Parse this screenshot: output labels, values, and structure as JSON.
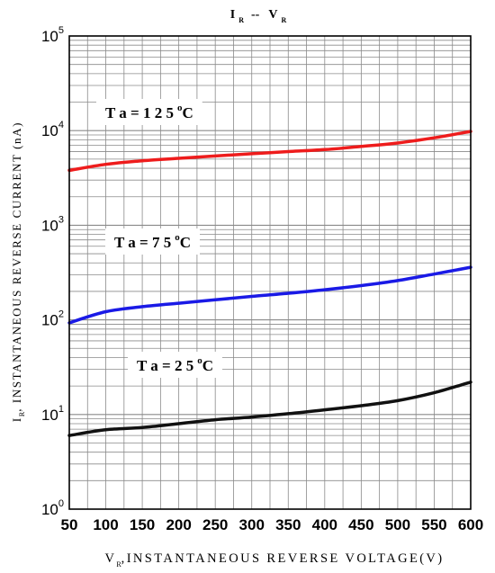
{
  "chart_data": {
    "type": "line",
    "title": {
      "main": "I",
      "sub_1": "R",
      "sep": "--",
      "main_2": "V",
      "sub_2": "R"
    },
    "xlabel": {
      "prefix": "V",
      "sub": "R",
      "text": ",INSTANTANEOUS REVERSE VOLTAGE(V)"
    },
    "ylabel": {
      "prefix": "I",
      "sub": "R",
      "text": ", INSTANTANEOUS REVERSE CURRENT (nA)"
    },
    "xlim": [
      50,
      600
    ],
    "ylim": [
      1,
      100000
    ],
    "yscale": "log",
    "grid": true,
    "x_ticks": [
      "50",
      "100",
      "150",
      "200",
      "250",
      "300",
      "350",
      "400",
      "450",
      "500",
      "550",
      "600"
    ],
    "y_ticks": [
      {
        "base": "10",
        "exp": "0"
      },
      {
        "base": "10",
        "exp": "1"
      },
      {
        "base": "10",
        "exp": "2"
      },
      {
        "base": "10",
        "exp": "3"
      },
      {
        "base": "10",
        "exp": "4"
      },
      {
        "base": "10",
        "exp": "5"
      }
    ],
    "x": [
      50,
      100,
      150,
      200,
      250,
      300,
      350,
      400,
      450,
      500,
      550,
      600
    ],
    "series": [
      {
        "label": {
          "text": "T a = 1 2 5",
          "sup": "o",
          "unit": "C"
        },
        "color": "#ee1c1c",
        "values": [
          3800,
          4400,
          4800,
          5100,
          5400,
          5700,
          6000,
          6300,
          6800,
          7400,
          8400,
          9800
        ]
      },
      {
        "label": {
          "text": "T a = 7 5",
          "sup": "o",
          "unit": "C"
        },
        "color": "#1a1ae6",
        "values": [
          93,
          122,
          138,
          150,
          163,
          177,
          191,
          208,
          230,
          260,
          305,
          360
        ]
      },
      {
        "label": {
          "text": "T a = 2 5",
          "sup": "o",
          "unit": "C"
        },
        "color": "#111111",
        "values": [
          6.0,
          6.9,
          7.3,
          8.0,
          8.8,
          9.4,
          10.2,
          11.2,
          12.4,
          14.0,
          17.0,
          22.0
        ]
      }
    ]
  }
}
